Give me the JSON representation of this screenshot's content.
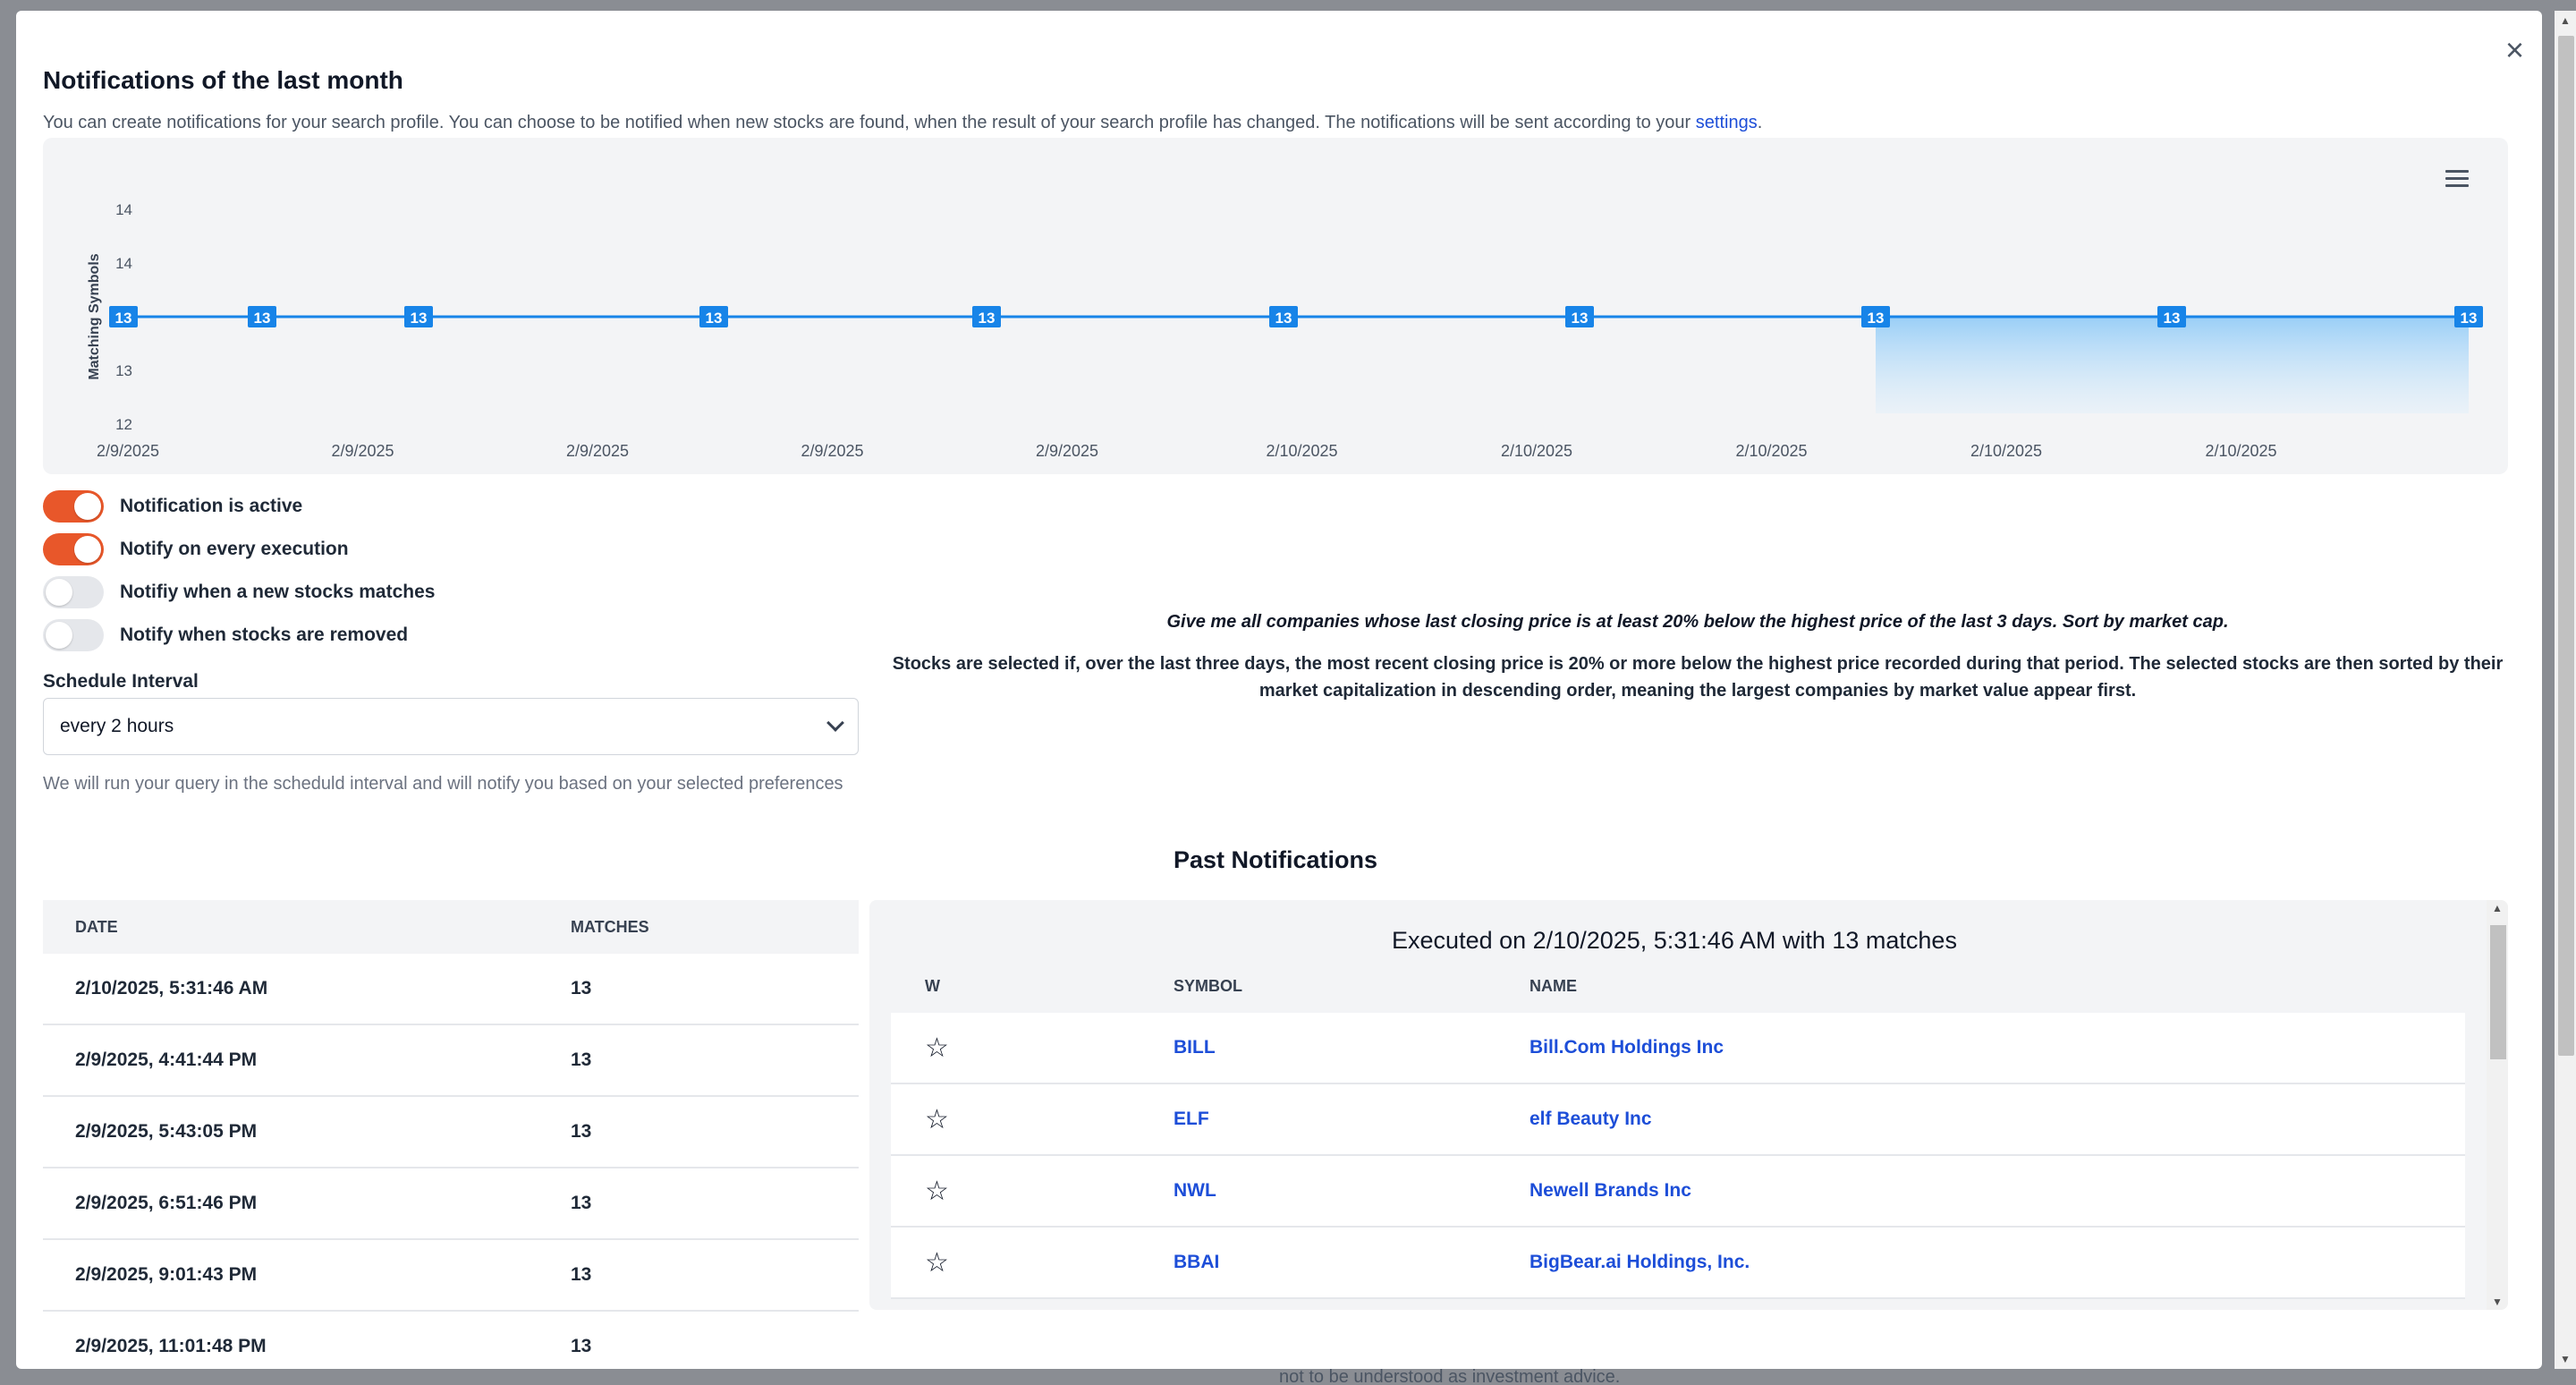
{
  "modal": {
    "title": "Notifications of the last month",
    "subtitle": "You can create notifications for your search profile. You can choose to be notified when new stocks are found, when the result of your search profile has changed. The notifications will be sent according to your ",
    "settings_link": "settings",
    "subtitle_end": ".",
    "close_label": "×"
  },
  "chart_data": {
    "type": "line",
    "title": "",
    "xlabel": "",
    "ylabel": "Matching Symbols",
    "y_ticks": [
      "14",
      "14",
      "13",
      "13",
      "12"
    ],
    "x_ticks": [
      "2/9/2025",
      "2/9/2025",
      "2/9/2025",
      "2/9/2025",
      "2/9/2025",
      "2/10/2025",
      "2/10/2025",
      "2/10/2025",
      "2/10/2025",
      "2/10/2025"
    ],
    "ylim": [
      12,
      14
    ],
    "grid": false,
    "series": [
      {
        "values": [
          13,
          13,
          13,
          13,
          13,
          13,
          13,
          13,
          13,
          13
        ],
        "data_labels": [
          "13",
          "13",
          "13",
          "13",
          "13",
          "13",
          "13",
          "13",
          "13",
          "13"
        ],
        "color": "#1784e8"
      }
    ]
  },
  "toggles": [
    {
      "label": "Notification is active",
      "on": true
    },
    {
      "label": "Notify on every execution",
      "on": true
    },
    {
      "label": "Notifiy when a new stocks matches",
      "on": false
    },
    {
      "label": "Notify when stocks are removed",
      "on": false
    }
  ],
  "schedule": {
    "label": "Schedule Interval",
    "value": "every 2 hours",
    "help": "We will run your query in the scheduld interval and will notify you based on your selected preferences"
  },
  "query": {
    "prompt": "Give me all companies whose last closing price is at least 20% below the highest price of the last 3 days. Sort by market cap.",
    "description": "Stocks are selected if, over the last three days, the most recent closing price is 20% or more below the highest price recorded during that period. The selected stocks are then sorted by their market capitalization in descending order, meaning the largest companies by market value appear first."
  },
  "past": {
    "title": "Past Notifications",
    "columns": {
      "date": "DATE",
      "matches": "MATCHES"
    },
    "rows": [
      {
        "date": "2/10/2025, 5:31:46 AM",
        "matches": "13"
      },
      {
        "date": "2/9/2025, 4:41:44 PM",
        "matches": "13"
      },
      {
        "date": "2/9/2025, 5:43:05 PM",
        "matches": "13"
      },
      {
        "date": "2/9/2025, 6:51:46 PM",
        "matches": "13"
      },
      {
        "date": "2/9/2025, 9:01:43 PM",
        "matches": "13"
      },
      {
        "date": "2/9/2025, 11:01:48 PM",
        "matches": "13"
      }
    ]
  },
  "execution": {
    "title": "Executed on 2/10/2025, 5:31:46 AM with 13 matches",
    "columns": {
      "w": "W",
      "symbol": "SYMBOL",
      "name": "NAME"
    },
    "rows": [
      {
        "symbol": "BILL",
        "name": "Bill.Com Holdings Inc"
      },
      {
        "symbol": "ELF",
        "name": "elf Beauty Inc"
      },
      {
        "symbol": "NWL",
        "name": "Newell Brands Inc"
      },
      {
        "symbol": "BBAI",
        "name": "BigBear.ai Holdings, Inc."
      }
    ]
  },
  "backdrop": {
    "footer_text": "not to be understood as investment advice."
  }
}
